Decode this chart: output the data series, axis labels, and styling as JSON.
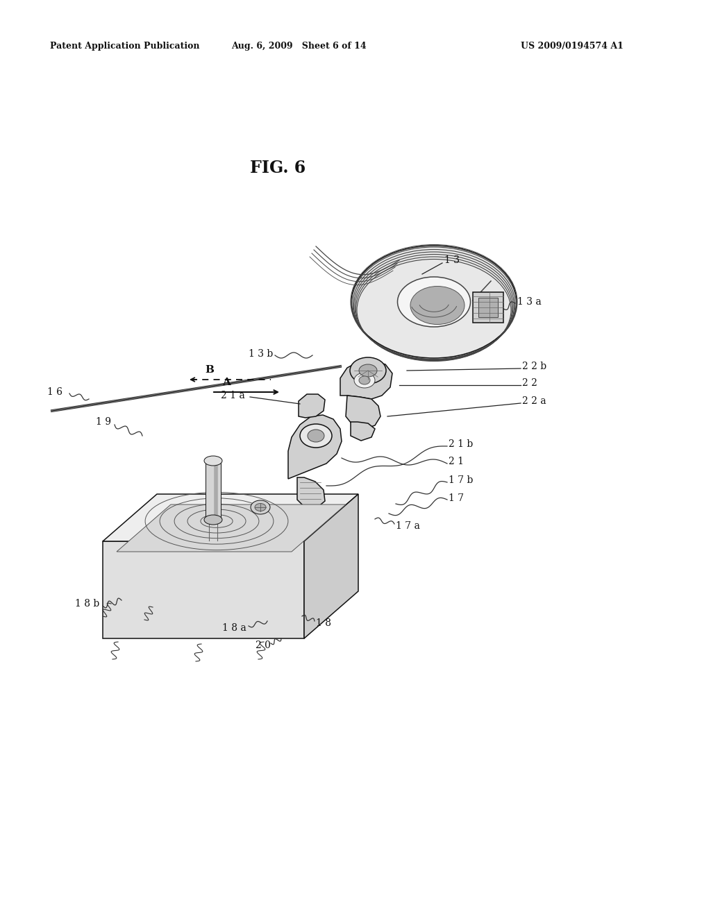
{
  "background": "#ffffff",
  "header_left": "Patent Application Publication",
  "header_mid": "Aug. 6, 2009   Sheet 6 of 14",
  "header_right": "US 2009/0194574 A1",
  "title": "FIG. 6",
  "dark": "#111111",
  "gray1": "#e8e8e8",
  "gray2": "#d0d0d0",
  "gray3": "#b0b0b0",
  "gray4": "#909090",
  "lw_thin": 0.7,
  "lw_med": 1.1,
  "lw_thick": 1.8,
  "lw_vthick": 2.8
}
